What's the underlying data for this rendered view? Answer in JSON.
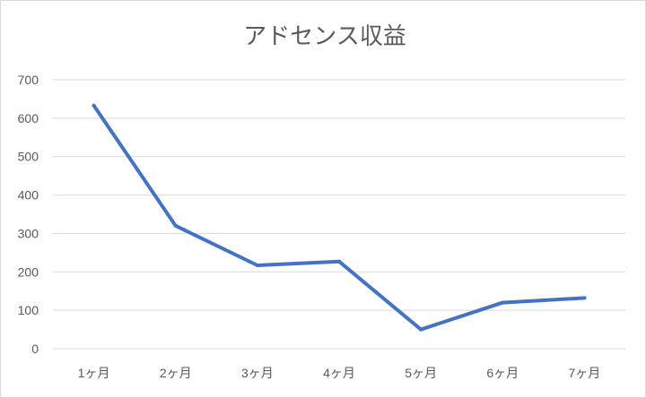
{
  "chart_data": {
    "type": "line",
    "title": "アドセンス収益",
    "categories": [
      "1ヶ月",
      "2ヶ月",
      "3ヶ月",
      "4ヶ月",
      "5ヶ月",
      "6ヶ月",
      "7ヶ月"
    ],
    "series": [
      {
        "values": [
          633,
          320,
          217,
          227,
          50,
          120,
          132
        ],
        "color": "#4472c4"
      }
    ],
    "xlabel": "",
    "ylabel": "",
    "ylim": [
      0,
      700
    ],
    "yticks": [
      0,
      100,
      200,
      300,
      400,
      500,
      600,
      700
    ],
    "grid": true,
    "legend": "none"
  }
}
